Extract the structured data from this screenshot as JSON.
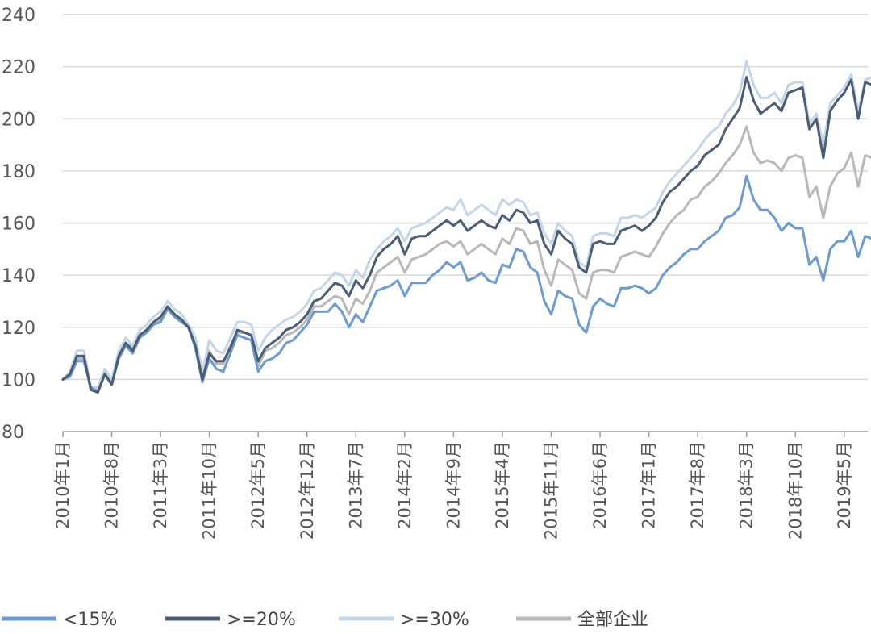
{
  "chart_data": {
    "type": "line",
    "title": "",
    "xlabel": "",
    "ylabel": "",
    "ylim": [
      80,
      240
    ],
    "y_ticks": [
      80,
      100,
      120,
      140,
      160,
      180,
      200,
      220,
      240
    ],
    "grid": true,
    "legend_position": "bottom",
    "x_ticks": [
      "2010年1月",
      "2010年8月",
      "2011年3月",
      "2011年10月",
      "2012年5月",
      "2012年12月",
      "2013年7月",
      "2014年2月",
      "2014年9月",
      "2015年4月",
      "2015年11月",
      "2016年6月",
      "2017年1月",
      "2017年8月",
      "2018年3月",
      "2018年10月",
      "2019年5月"
    ],
    "x_start": "2010年1月",
    "x_step": "1月",
    "series": [
      {
        "name": "<15%",
        "color": "#6b9bd1",
        "values": [
          100,
          101,
          107,
          107,
          97,
          95,
          102,
          98,
          108,
          113,
          110,
          116,
          118,
          121,
          122,
          127,
          124,
          122,
          120,
          112,
          99,
          108,
          104,
          103,
          110,
          117,
          116,
          115,
          103,
          107,
          108,
          110,
          114,
          115,
          118,
          121,
          126,
          126,
          126,
          129,
          126,
          120,
          125,
          122,
          128,
          134,
          135,
          136,
          138,
          132,
          137,
          137,
          137,
          140,
          142,
          145,
          143,
          145,
          138,
          139,
          141,
          138,
          137,
          144,
          143,
          150,
          149,
          143,
          141,
          130,
          125,
          134,
          132,
          131,
          121,
          118,
          128,
          131,
          129,
          128,
          135,
          135,
          136,
          135,
          133,
          135,
          140,
          143,
          145,
          148,
          150,
          150,
          153,
          155,
          157,
          162,
          163,
          166,
          178,
          169,
          165,
          165,
          162,
          157,
          160,
          158,
          158,
          144,
          147,
          138,
          150,
          153,
          153,
          157,
          147,
          155,
          154,
          148
        ]
      },
      {
        "name": ">=20%",
        "color": "#4a5d74",
        "values": [
          100,
          102,
          109,
          109,
          96,
          95,
          102,
          98,
          109,
          114,
          111,
          117,
          119,
          122,
          124,
          128,
          125,
          123,
          120,
          113,
          100,
          110,
          107,
          107,
          112,
          119,
          118,
          117,
          107,
          112,
          114,
          116,
          119,
          120,
          122,
          125,
          130,
          131,
          134,
          137,
          136,
          132,
          138,
          135,
          140,
          147,
          150,
          152,
          155,
          148,
          154,
          155,
          155,
          157,
          159,
          161,
          159,
          161,
          157,
          159,
          161,
          159,
          158,
          163,
          161,
          165,
          164,
          160,
          161,
          152,
          148,
          157,
          154,
          152,
          143,
          141,
          152,
          153,
          152,
          152,
          157,
          158,
          159,
          157,
          159,
          162,
          168,
          172,
          174,
          177,
          180,
          182,
          186,
          188,
          190,
          196,
          200,
          204,
          216,
          207,
          202,
          204,
          206,
          203,
          210,
          211,
          212,
          196,
          200,
          185,
          203,
          207,
          210,
          215,
          200,
          214,
          213,
          208
        ]
      },
      {
        "name": ">=30%",
        "color": "#c5d5e8",
        "values": [
          100,
          103,
          111,
          111,
          97,
          97,
          104,
          100,
          111,
          116,
          113,
          119,
          121,
          124,
          126,
          130,
          127,
          125,
          121,
          116,
          103,
          115,
          111,
          110,
          116,
          122,
          122,
          121,
          111,
          116,
          119,
          121,
          123,
          124,
          126,
          129,
          134,
          135,
          138,
          141,
          140,
          136,
          142,
          139,
          146,
          150,
          153,
          155,
          158,
          153,
          158,
          159,
          160,
          162,
          164,
          166,
          165,
          169,
          163,
          165,
          167,
          165,
          163,
          169,
          167,
          169,
          168,
          163,
          164,
          156,
          152,
          160,
          157,
          155,
          145,
          143,
          155,
          156,
          156,
          155,
          162,
          162,
          163,
          162,
          164,
          166,
          172,
          176,
          179,
          182,
          185,
          188,
          192,
          195,
          197,
          202,
          205,
          210,
          222,
          213,
          208,
          208,
          210,
          206,
          213,
          214,
          214,
          198,
          202,
          190,
          206,
          209,
          212,
          217,
          203,
          215,
          216,
          211
        ]
      },
      {
        "name": "全部企业",
        "color": "#b8b8b8",
        "values": [
          100,
          102,
          108,
          108,
          97,
          96,
          103,
          99,
          109,
          114,
          112,
          117,
          119,
          122,
          123,
          127,
          125,
          123,
          120,
          114,
          100,
          111,
          106,
          106,
          113,
          118,
          118,
          117,
          105,
          111,
          112,
          114,
          117,
          118,
          120,
          123,
          128,
          128,
          130,
          132,
          131,
          125,
          131,
          129,
          134,
          141,
          143,
          145,
          147,
          141,
          146,
          147,
          148,
          150,
          152,
          153,
          151,
          153,
          148,
          150,
          152,
          150,
          148,
          154,
          152,
          158,
          157,
          152,
          153,
          142,
          136,
          146,
          144,
          142,
          133,
          131,
          141,
          142,
          142,
          141,
          147,
          148,
          149,
          148,
          147,
          151,
          156,
          160,
          163,
          165,
          169,
          170,
          174,
          176,
          179,
          183,
          186,
          190,
          197,
          187,
          183,
          184,
          183,
          180,
          185,
          186,
          185,
          170,
          174,
          162,
          174,
          179,
          181,
          187,
          174,
          186,
          185,
          180
        ]
      }
    ]
  }
}
